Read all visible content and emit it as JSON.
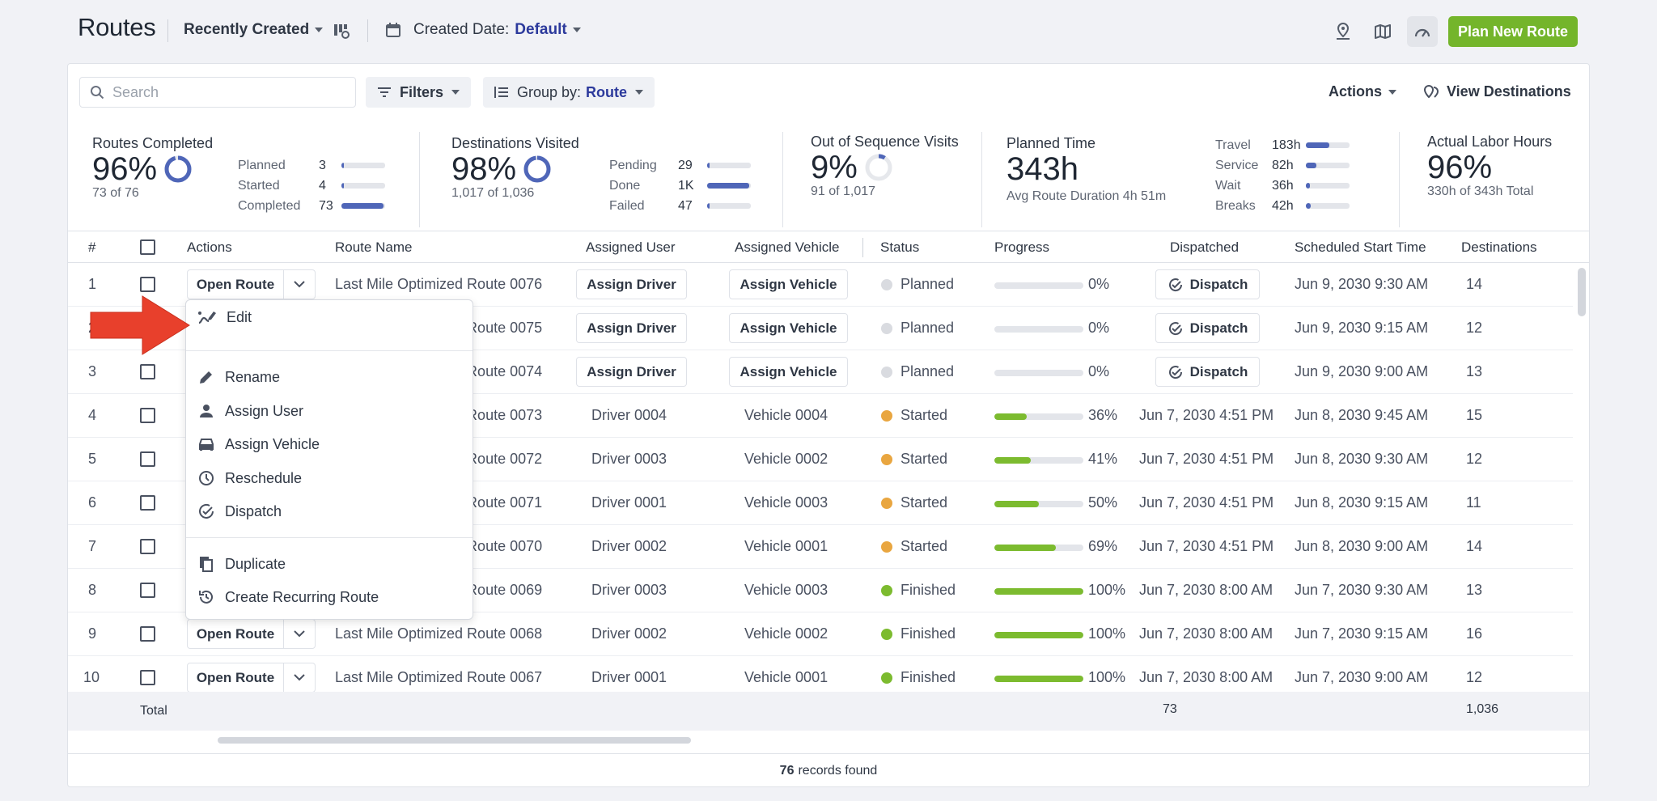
{
  "header": {
    "title": "Routes",
    "sort_label": "Recently Created",
    "date_label": "Created Date:",
    "date_value": "Default",
    "plan_button": "Plan New Route"
  },
  "toolbar": {
    "search_placeholder": "Search",
    "filters_label": "Filters",
    "group_by_label": "Group by:",
    "group_by_value": "Route",
    "actions_label": "Actions",
    "view_destinations_label": "View Destinations"
  },
  "stats": {
    "routes_completed": {
      "title": "Routes Completed",
      "value": "96%",
      "sub": "73 of 76",
      "ring_fraction": 0.96,
      "breakdown": [
        {
          "label": "Planned",
          "value": "3",
          "fraction": 0.04
        },
        {
          "label": "Started",
          "value": "4",
          "fraction": 0.05
        },
        {
          "label": "Completed",
          "value": "73",
          "fraction": 0.96
        }
      ]
    },
    "destinations_visited": {
      "title": "Destinations Visited",
      "value": "98%",
      "sub": "1,017 of 1,036",
      "ring_fraction": 0.98,
      "breakdown": [
        {
          "label": "Pending",
          "value": "29",
          "fraction": 0.03
        },
        {
          "label": "Done",
          "value": "1K",
          "fraction": 0.96
        },
        {
          "label": "Failed",
          "value": "47",
          "fraction": 0.05
        }
      ]
    },
    "out_of_sequence": {
      "title": "Out of Sequence Visits",
      "value": "9%",
      "sub": "91 of 1,017",
      "ring_fraction": 0.09
    },
    "planned_time": {
      "title": "Planned Time",
      "value": "343h",
      "sub": "Avg Route Duration 4h 51m",
      "breakdown": [
        {
          "label": "Travel",
          "value": "183h",
          "fraction": 0.53
        },
        {
          "label": "Service",
          "value": "82h",
          "fraction": 0.24
        },
        {
          "label": "Wait",
          "value": "36h",
          "fraction": 0.1
        },
        {
          "label": "Breaks",
          "value": "42h",
          "fraction": 0.12
        }
      ]
    },
    "actual_labor": {
      "title": "Actual Labor Hours",
      "value": "96%",
      "sub": "330h of 343h Total"
    }
  },
  "table": {
    "headers": {
      "num": "#",
      "actions": "Actions",
      "route_name": "Route Name",
      "user": "Assigned User",
      "vehicle": "Assigned Vehicle",
      "status": "Status",
      "progress": "Progress",
      "dispatched": "Dispatched",
      "start": "Scheduled Start Time",
      "destinations": "Destinations"
    },
    "open_route_label": "Open Route",
    "assign_driver_label": "Assign Driver",
    "assign_vehicle_label": "Assign Vehicle",
    "dispatch_label": "Dispatch",
    "rows": [
      {
        "num": "1",
        "name": "Last Mile Optimized Route 0076",
        "user": "",
        "vehicle": "",
        "status": "Planned",
        "progress": "0%",
        "progress_fraction": 0,
        "dispatched": "",
        "start": "Jun 9, 2030 9:30 AM",
        "destinations": "14"
      },
      {
        "num": "2",
        "name": "Last Mile Optimized Route 0075",
        "user": "",
        "vehicle": "",
        "status": "Planned",
        "progress": "0%",
        "progress_fraction": 0,
        "dispatched": "",
        "start": "Jun 9, 2030 9:15 AM",
        "destinations": "12"
      },
      {
        "num": "3",
        "name": "Last Mile Optimized Route 0074",
        "user": "",
        "vehicle": "",
        "status": "Planned",
        "progress": "0%",
        "progress_fraction": 0,
        "dispatched": "",
        "start": "Jun 9, 2030 9:00 AM",
        "destinations": "13"
      },
      {
        "num": "4",
        "name": "Last Mile Optimized Route 0073",
        "user": "Driver 0004",
        "vehicle": "Vehicle 0004",
        "status": "Started",
        "progress": "36%",
        "progress_fraction": 0.36,
        "dispatched": "Jun 7, 2030 4:51 PM",
        "start": "Jun 8, 2030 9:45 AM",
        "destinations": "15"
      },
      {
        "num": "5",
        "name": "Last Mile Optimized Route 0072",
        "user": "Driver 0003",
        "vehicle": "Vehicle 0002",
        "status": "Started",
        "progress": "41%",
        "progress_fraction": 0.41,
        "dispatched": "Jun 7, 2030 4:51 PM",
        "start": "Jun 8, 2030 9:30 AM",
        "destinations": "12"
      },
      {
        "num": "6",
        "name": "Last Mile Optimized Route 0071",
        "user": "Driver 0001",
        "vehicle": "Vehicle 0003",
        "status": "Started",
        "progress": "50%",
        "progress_fraction": 0.5,
        "dispatched": "Jun 7, 2030 4:51 PM",
        "start": "Jun 8, 2030 9:15 AM",
        "destinations": "11"
      },
      {
        "num": "7",
        "name": "Last Mile Optimized Route 0070",
        "user": "Driver 0002",
        "vehicle": "Vehicle 0001",
        "status": "Started",
        "progress": "69%",
        "progress_fraction": 0.69,
        "dispatched": "Jun 7, 2030 4:51 PM",
        "start": "Jun 8, 2030 9:00 AM",
        "destinations": "14"
      },
      {
        "num": "8",
        "name": "Last Mile Optimized Route 0069",
        "user": "Driver 0003",
        "vehicle": "Vehicle 0003",
        "status": "Finished",
        "progress": "100%",
        "progress_fraction": 1,
        "dispatched": "Jun 7, 2030 8:00 AM",
        "start": "Jun 7, 2030 9:30 AM",
        "destinations": "13"
      },
      {
        "num": "9",
        "name": "Last Mile Optimized Route 0068",
        "user": "Driver 0002",
        "vehicle": "Vehicle 0002",
        "status": "Finished",
        "progress": "100%",
        "progress_fraction": 1,
        "dispatched": "Jun 7, 2030 8:00 AM",
        "start": "Jun 7, 2030 9:15 AM",
        "destinations": "16"
      },
      {
        "num": "10",
        "name": "Last Mile Optimized Route 0067",
        "user": "Driver 0001",
        "vehicle": "Vehicle 0001",
        "status": "Finished",
        "progress": "100%",
        "progress_fraction": 1,
        "dispatched": "Jun 7, 2030 8:00 AM",
        "start": "Jun 7, 2030 9:00 AM",
        "destinations": "12"
      }
    ],
    "total_label": "Total",
    "total_dispatched": "73",
    "total_destinations": "1,036"
  },
  "footer": {
    "count": "76",
    "suffix": "records found"
  },
  "menu": {
    "items": [
      {
        "label": "Edit",
        "icon": "edit-route-icon"
      },
      {
        "label": "Rename",
        "icon": "pencil-icon"
      },
      {
        "label": "Assign User",
        "icon": "user-icon"
      },
      {
        "label": "Assign Vehicle",
        "icon": "car-icon"
      },
      {
        "label": "Reschedule",
        "icon": "clock-icon"
      },
      {
        "label": "Dispatch",
        "icon": "check-circle-icon"
      },
      {
        "label": "Duplicate",
        "icon": "copy-icon"
      },
      {
        "label": "Create Recurring Route",
        "icon": "recurring-icon"
      }
    ]
  },
  "colors": {
    "accent": "#74b52b",
    "brand_blue": "#2c3a9c",
    "planned": "#d9dbe0",
    "started": "#e9a640",
    "finished": "#7cbb2f",
    "arrow": "#e8402c"
  }
}
